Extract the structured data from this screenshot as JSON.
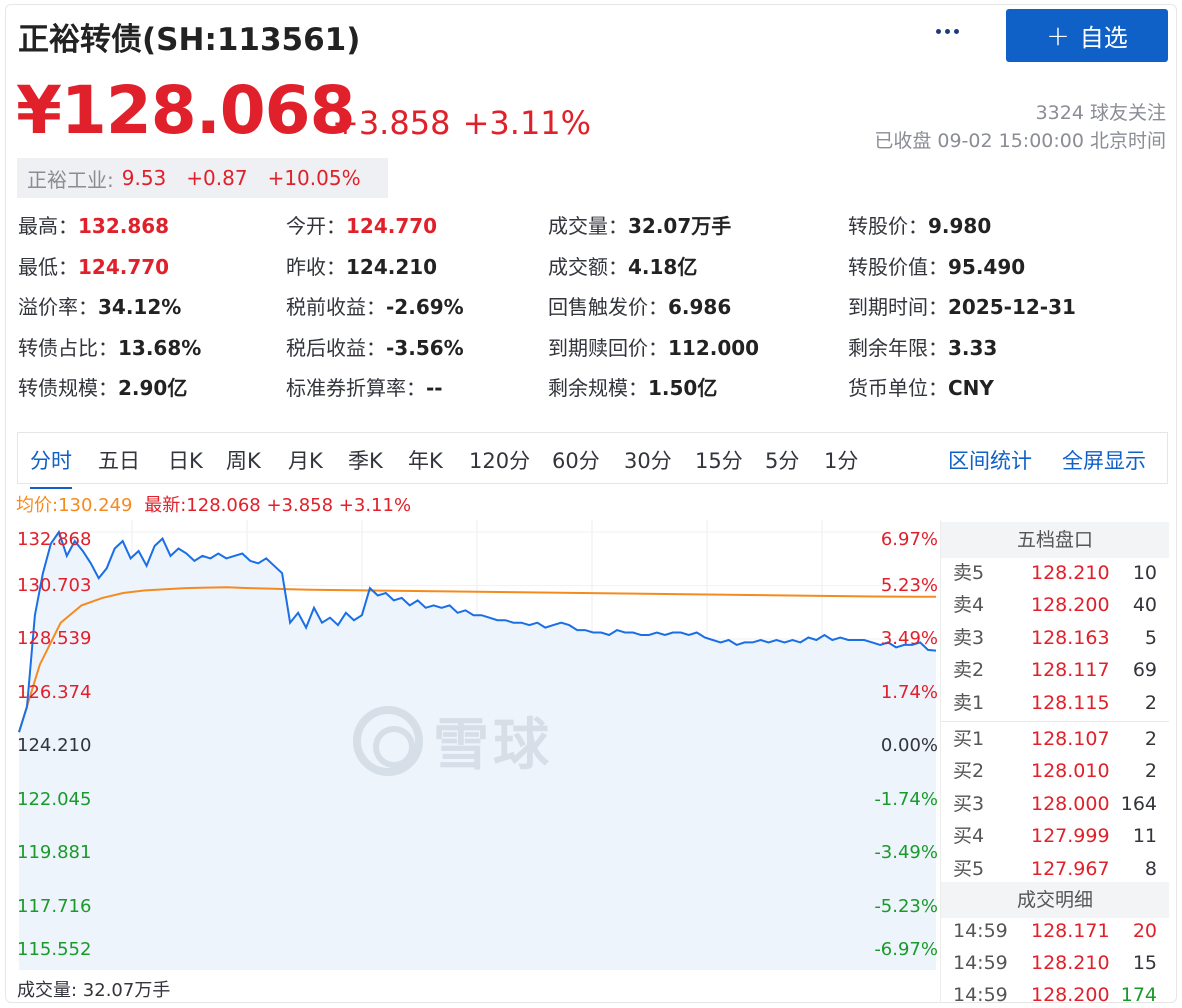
{
  "header": {
    "title": "正裕转债(SH:113561)",
    "follow_button": "自选",
    "price": "¥128.068",
    "change": "+3.858",
    "change_pct": "+3.11%",
    "followers": "3324 球友关注",
    "status": "已收盘 09-02 15:00:00 北京时间"
  },
  "underlying": {
    "name": "正裕工业:",
    "price": "9.53",
    "change": "+0.87",
    "change_pct": "+10.05%"
  },
  "stats": [
    [
      {
        "k": "最高：",
        "v": "132.868",
        "red": true
      },
      {
        "k": "今开：",
        "v": "124.770",
        "red": true
      },
      {
        "k": "成交量：",
        "v": "32.07万手"
      },
      {
        "k": "转股价：",
        "v": "9.980"
      }
    ],
    [
      {
        "k": "最低：",
        "v": "124.770",
        "red": true
      },
      {
        "k": "昨收：",
        "v": "124.210"
      },
      {
        "k": "成交额：",
        "v": "4.18亿"
      },
      {
        "k": "转股价值：",
        "v": "95.490"
      }
    ],
    [
      {
        "k": "溢价率：",
        "v": "34.12%"
      },
      {
        "k": "税前收益：",
        "v": "-2.69%"
      },
      {
        "k": "回售触发价：",
        "v": "6.986"
      },
      {
        "k": "到期时间：",
        "v": "2025-12-31"
      }
    ],
    [
      {
        "k": "转债占比：",
        "v": "13.68%"
      },
      {
        "k": "税后收益：",
        "v": "-3.56%"
      },
      {
        "k": "到期赎回价：",
        "v": "112.000"
      },
      {
        "k": "剩余年限：",
        "v": "3.33"
      }
    ],
    [
      {
        "k": "转债规模：",
        "v": "2.90亿"
      },
      {
        "k": "标准券折算率：",
        "v": "--"
      },
      {
        "k": "剩余规模：",
        "v": "1.50亿"
      },
      {
        "k": "货币单位：",
        "v": "CNY"
      }
    ]
  ],
  "tabs": [
    "分时",
    "五日",
    "日K",
    "周K",
    "月K",
    "季K",
    "年K",
    "120分",
    "60分",
    "30分",
    "15分",
    "5分",
    "1分"
  ],
  "tab_links": [
    "区间统计",
    "全屏显示"
  ],
  "legend": {
    "avg": "均价:130.249",
    "last": "最新:128.068 +3.858 +3.11%"
  },
  "watermark": "雪球",
  "volume": "成交量: 32.07万手",
  "colors": {
    "up": "#e0202a",
    "down": "#1a9a2a",
    "accent": "#0f61c8",
    "avg_line": "#f58b1f",
    "price_line": "#1a6fe6"
  },
  "chart_data": {
    "type": "line",
    "title": "分时",
    "y_labels_left": [
      "132.868",
      "130.703",
      "128.539",
      "126.374",
      "124.210",
      "122.045",
      "119.881",
      "117.716",
      "115.552"
    ],
    "y_labels_right": [
      "6.97%",
      "5.23%",
      "3.49%",
      "1.74%",
      "0.00%",
      "-1.74%",
      "-3.49%",
      "-5.23%",
      "-6.97%"
    ],
    "ylim": [
      115.552,
      132.868
    ],
    "prev_close": 124.21,
    "series": [
      {
        "name": "最新",
        "values": [
          124.77,
          125.8,
          129.5,
          131.2,
          132.4,
          132.868,
          131.9,
          132.5,
          132.1,
          131.6,
          131.0,
          131.4,
          132.2,
          132.5,
          131.8,
          132.1,
          131.5,
          132.3,
          132.6,
          131.9,
          132.2,
          132.0,
          131.7,
          131.9,
          131.8,
          132.0,
          131.8,
          131.9,
          132.0,
          131.7,
          131.6,
          131.8,
          131.5,
          131.2,
          129.2,
          129.6,
          129.0,
          129.8,
          129.2,
          129.4,
          129.1,
          129.6,
          129.3,
          129.5,
          130.6,
          130.3,
          130.4,
          130.1,
          130.2,
          129.9,
          130.1,
          129.8,
          129.9,
          129.8,
          129.9,
          129.6,
          129.7,
          129.5,
          129.5,
          129.4,
          129.3,
          129.3,
          129.2,
          129.2,
          129.1,
          129.2,
          129.0,
          129.1,
          129.2,
          129.1,
          128.9,
          128.9,
          128.8,
          128.8,
          128.7,
          128.9,
          128.8,
          128.8,
          128.7,
          128.7,
          128.8,
          128.7,
          128.8,
          128.8,
          128.7,
          128.8,
          128.6,
          128.5,
          128.4,
          128.5,
          128.3,
          128.4,
          128.4,
          128.5,
          128.4,
          128.5,
          128.4,
          128.5,
          128.4,
          128.6,
          128.5,
          128.7,
          128.5,
          128.6,
          128.5,
          128.5,
          128.5,
          128.4,
          128.3,
          128.4,
          128.2,
          128.3,
          128.3,
          128.4,
          128.1,
          128.068
        ]
      },
      {
        "name": "均价",
        "values": [
          124.77,
          127.5,
          129.2,
          129.9,
          130.2,
          130.4,
          130.5,
          130.55,
          130.6,
          130.62,
          130.63,
          130.6,
          130.58,
          130.55,
          130.53,
          130.52,
          130.51,
          130.5,
          130.49,
          130.48,
          130.47,
          130.46,
          130.45,
          130.44,
          130.43,
          130.42,
          130.41,
          130.4,
          130.39,
          130.38,
          130.37,
          130.36,
          130.35,
          130.34,
          130.33,
          130.32,
          130.31,
          130.3,
          130.29,
          130.28,
          130.27,
          130.26,
          130.255,
          130.252,
          130.249
        ]
      }
    ],
    "order_book": {
      "title": "五档盘口",
      "asks": [
        [
          "卖5",
          "128.210",
          "10"
        ],
        [
          "卖4",
          "128.200",
          "40"
        ],
        [
          "卖3",
          "128.163",
          "5"
        ],
        [
          "卖2",
          "128.117",
          "69"
        ],
        [
          "卖1",
          "128.115",
          "2"
        ]
      ],
      "bids": [
        [
          "买1",
          "128.107",
          "2"
        ],
        [
          "买2",
          "128.010",
          "2"
        ],
        [
          "买3",
          "128.000",
          "164"
        ],
        [
          "买4",
          "127.999",
          "11"
        ],
        [
          "买5",
          "127.967",
          "8"
        ]
      ]
    },
    "trades": {
      "title": "成交明细",
      "rows": [
        [
          "14:59",
          "128.171",
          "20",
          "red"
        ],
        [
          "14:59",
          "128.210",
          "15",
          "plain"
        ],
        [
          "14:59",
          "128.200",
          "174",
          "green"
        ]
      ]
    }
  }
}
